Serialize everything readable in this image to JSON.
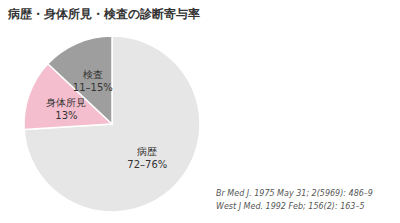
{
  "chart_data": {
    "type": "pie",
    "title": "病歴・身体所見・検査の診断寄与率",
    "categories": [
      "病歴",
      "身体所見",
      "検査"
    ],
    "values": [
      74,
      13,
      13
    ],
    "value_labels": [
      "72–76%",
      "13%",
      "11–15%"
    ],
    "data_labels": true,
    "colors": [
      "#e6e6e6",
      "#f5bece",
      "#9e9e9e"
    ],
    "annotations": [
      "Br Med J. 1975 May 31; 2(5969): 486–9",
      "West J Med. 1992 Feb; 156(2): 163–5"
    ]
  }
}
